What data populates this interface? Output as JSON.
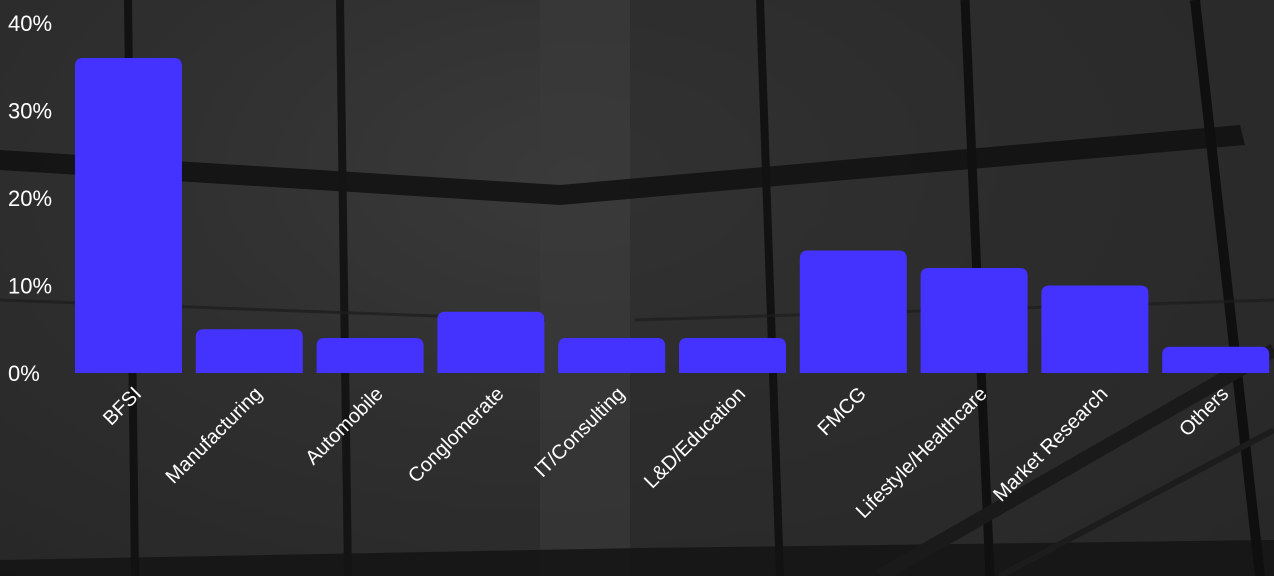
{
  "colors": {
    "bar": "#4433ff",
    "text": "#ffffff",
    "background": "#2b2b2b"
  },
  "chart_data": {
    "type": "bar",
    "categories": [
      "BFSI",
      "Manufacturing",
      "Automobile",
      "Conglomerate",
      "IT/Consulting",
      "L&D/Education",
      "FMCG",
      "Lifestyle/Healthcare",
      "Market Research",
      "Others"
    ],
    "values": [
      36,
      5,
      4,
      7,
      4,
      4,
      14,
      12,
      10,
      3
    ],
    "yticks": [
      "0%",
      "10%",
      "20%",
      "30%",
      "40%"
    ],
    "ytick_values": [
      0,
      10,
      20,
      30,
      40
    ],
    "ylim": [
      0,
      40
    ],
    "grid": false,
    "legend": "none"
  }
}
